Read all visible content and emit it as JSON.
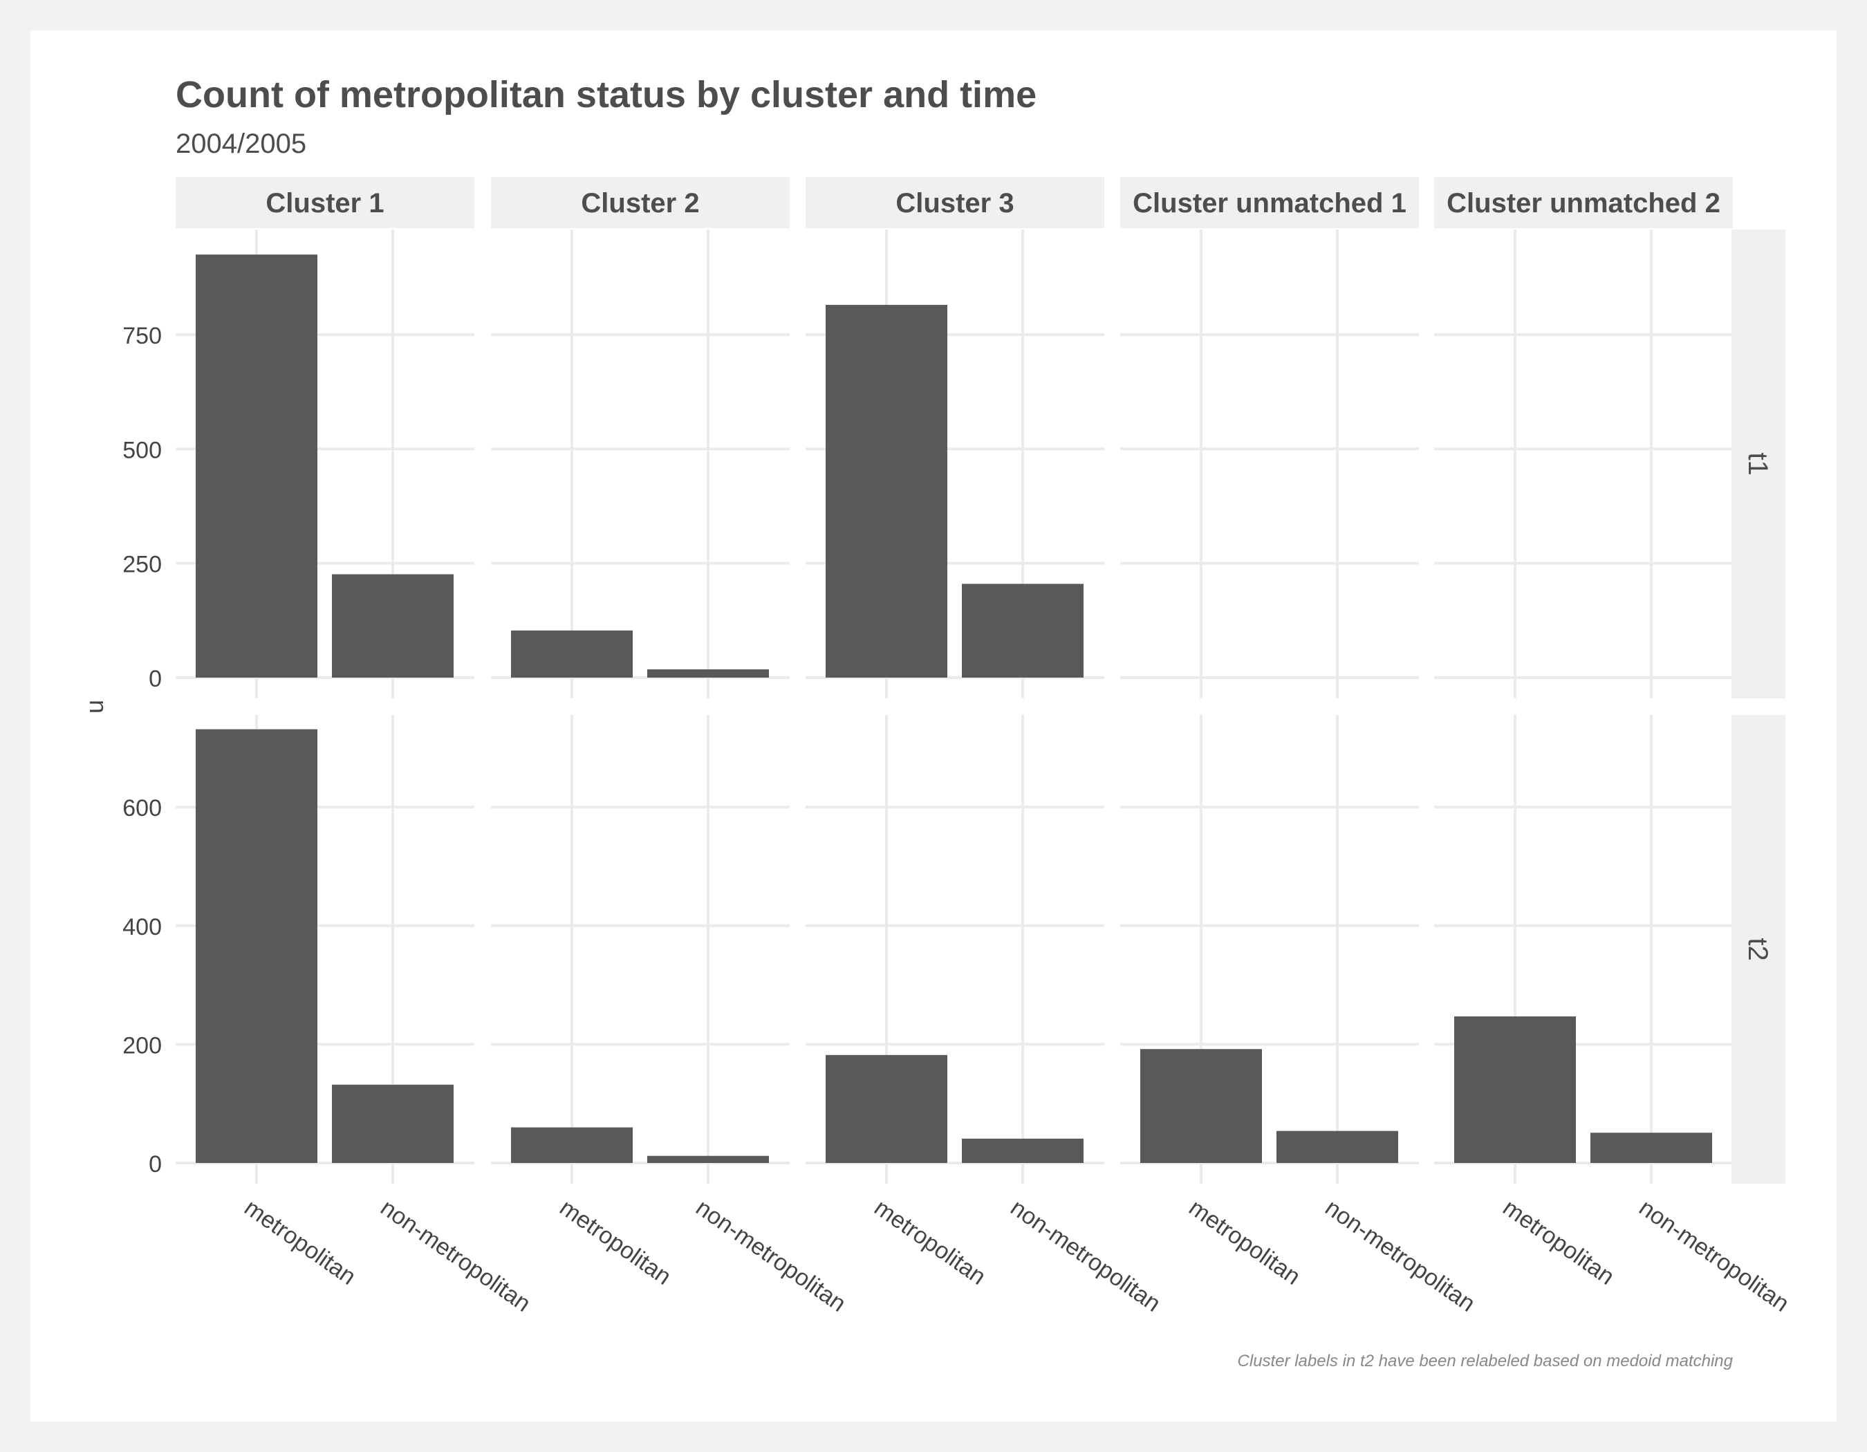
{
  "chart_data": {
    "type": "bar",
    "title": "Count of metropolitan status by cluster and time",
    "subtitle": "2004/2005",
    "ylabel": "n",
    "caption": "Cluster labels in t2 have been relabeled based on medoid matching",
    "categories": [
      "metropolitan",
      "non-metropolitan"
    ],
    "facet_columns": [
      "Cluster 1",
      "Cluster 2",
      "Cluster 3",
      "Cluster unmatched 1",
      "Cluster unmatched 2"
    ],
    "facet_rows": [
      {
        "name": "t1",
        "ylim": [
          0,
          960
        ],
        "yticks": [
          0,
          250,
          500,
          750
        ],
        "values": [
          [
            925,
            226
          ],
          [
            103,
            18
          ],
          [
            815,
            205
          ],
          [
            0,
            0
          ],
          [
            0,
            0
          ]
        ]
      },
      {
        "name": "t2",
        "ylim": [
          0,
          740
        ],
        "yticks": [
          0,
          200,
          400,
          600
        ],
        "values": [
          [
            731,
            132
          ],
          [
            60,
            12
          ],
          [
            182,
            41
          ],
          [
            192,
            54
          ],
          [
            247,
            51
          ]
        ]
      }
    ],
    "grid": true,
    "legend": "none",
    "colors": {
      "bar": "#595959",
      "strip": "#f0f0f0",
      "grid": "#ebebeb",
      "panel_background": "#ffffff",
      "page_background": "#f2f2f2",
      "text_dark": "#4d4d4d",
      "text_mid": "#444444",
      "caption": "#888888"
    }
  }
}
